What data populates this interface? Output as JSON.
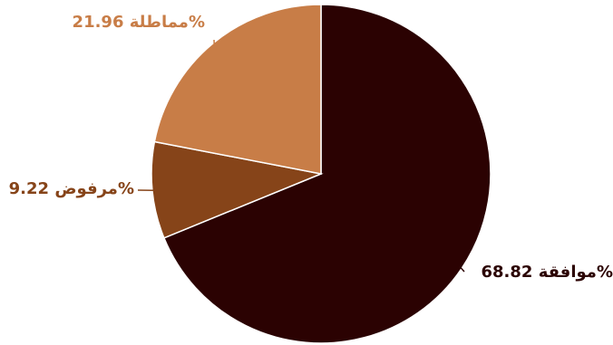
{
  "chart_data": {
    "type": "pie",
    "title": "",
    "slices": [
      {
        "name": "موافقة",
        "value": 68.82,
        "label": "موافقة 68.82%",
        "color": "#2b0202"
      },
      {
        "name": "مرفوض",
        "value": 9.22,
        "label": "مرفوض 9.22%",
        "color": "#864419"
      },
      {
        "name": "مماطلة",
        "value": 21.96,
        "label": "مماطلة 21.96%",
        "color": "#c87d47"
      }
    ]
  }
}
